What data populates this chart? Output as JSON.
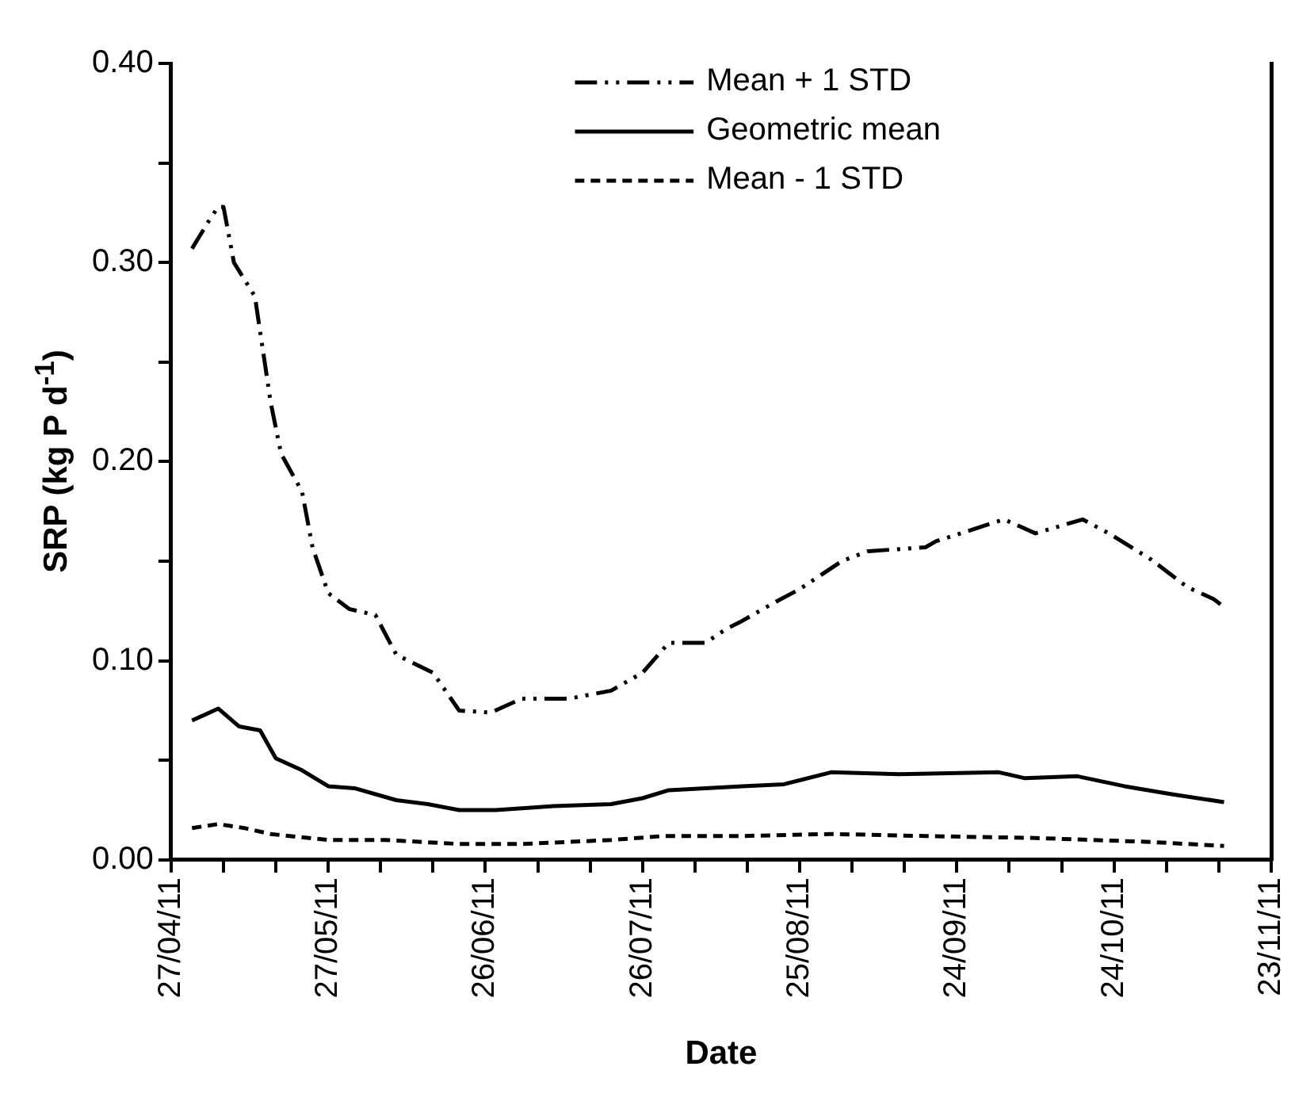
{
  "chart_data": {
    "type": "line",
    "xlabel": "Date",
    "ylabel": "SRP (kg P d$^{-1}$)",
    "legend": "top",
    "grid": false,
    "marker": "none",
    "xlim": [
      "--04-27",
      "--11-23"
    ],
    "xticks": [
      {
        "value": "--04-27",
        "label": "27/04/11"
      },
      {
        "value": "--05-07",
        "label": null
      },
      {
        "value": "--05-17",
        "label": null
      },
      {
        "value": "--05-27",
        "label": "27/05/11"
      },
      {
        "value": "--06-06",
        "label": null
      },
      {
        "value": "--06-16",
        "label": null
      },
      {
        "value": "--06-26",
        "label": "26/06/11"
      },
      {
        "value": "--07-06",
        "label": null
      },
      {
        "value": "--07-16",
        "label": null
      },
      {
        "value": "--07-26",
        "label": "26/07/11"
      },
      {
        "value": "--08-05",
        "label": null
      },
      {
        "value": "--08-15",
        "label": null
      },
      {
        "value": "--08-25",
        "label": "25/08/11"
      },
      {
        "value": "--09-04",
        "label": null
      },
      {
        "value": "--09-14",
        "label": null
      },
      {
        "value": "--09-24",
        "label": "24/09/11"
      },
      {
        "value": "--10-04",
        "label": null
      },
      {
        "value": "--10-14",
        "label": null
      },
      {
        "value": "--10-24",
        "label": "24/10/11"
      },
      {
        "value": "--11-03",
        "label": null
      },
      {
        "value": "--11-13",
        "label": null
      },
      {
        "value": "--11-23",
        "label": "23/11/11"
      }
    ],
    "ylim": [
      0,
      0.4
    ],
    "yticks": [
      {
        "value": 0,
        "label": "0.00"
      },
      {
        "value": 0.05,
        "label": null
      },
      {
        "value": 0.1,
        "label": "0.10"
      },
      {
        "value": 0.15,
        "label": null
      },
      {
        "value": 0.2,
        "label": "0.20"
      },
      {
        "value": 0.25,
        "label": null
      },
      {
        "value": 0.3,
        "label": "0.30"
      },
      {
        "value": 0.35,
        "label": null
      },
      {
        "value": 0.4,
        "label": "0.40"
      }
    ],
    "series": [
      {
        "name": "Mean + 1 STD",
        "color": "#000000",
        "line_style": "dashdot",
        "x": [
          "--05-01",
          "--05-04",
          "--05-06",
          "--05-07",
          "--05-09",
          "--05-13",
          "--05-16",
          "--05-18",
          "--05-22",
          "--05-24",
          "--05-27",
          "--05-31",
          "--06-05",
          "--06-09",
          "--06-16",
          "--06-21",
          "--06-27",
          "--07-03",
          "--07-12",
          "--07-20",
          "--07-26",
          "--07-31",
          "--08-07",
          "--08-11",
          "--08-14",
          "--08-20",
          "--08-25",
          "--09-02",
          "--09-07",
          "--09-18",
          "--09-20",
          "--10-03",
          "--10-09",
          "--10-18",
          "--10-23",
          "--10-31",
          "--11-07",
          "--11-12",
          "--11-14"
        ],
        "values": [
          0.307,
          0.32,
          0.328,
          0.328,
          0.3,
          0.283,
          0.23,
          0.204,
          0.185,
          0.157,
          0.134,
          0.126,
          0.123,
          0.103,
          0.094,
          0.075,
          0.074,
          0.081,
          0.081,
          0.085,
          0.094,
          0.109,
          0.109,
          0.116,
          0.12,
          0.129,
          0.136,
          0.15,
          0.155,
          0.157,
          0.16,
          0.171,
          0.164,
          0.171,
          0.164,
          0.151,
          0.137,
          0.131,
          0.127
        ]
      },
      {
        "name": "Geometric mean",
        "color": "#000000",
        "line_style": "solid",
        "x": [
          "--05-01",
          "--05-06",
          "--05-10",
          "--05-14",
          "--05-17",
          "--05-22",
          "--05-27",
          "--06-01",
          "--06-09",
          "--06-15",
          "--06-21",
          "--06-28",
          "--07-09",
          "--07-20",
          "--07-26",
          "--07-31",
          "--08-14",
          "--08-22",
          "--08-31",
          "--09-13",
          "--10-02",
          "--10-07",
          "--10-17",
          "--10-26",
          "--11-04",
          "--11-14"
        ],
        "values": [
          0.07,
          0.076,
          0.067,
          0.065,
          0.051,
          0.045,
          0.037,
          0.036,
          0.03,
          0.028,
          0.025,
          0.025,
          0.027,
          0.028,
          0.031,
          0.035,
          0.037,
          0.038,
          0.044,
          0.043,
          0.044,
          0.041,
          0.042,
          0.037,
          0.033,
          0.029
        ]
      },
      {
        "name": "Mean - 1 STD",
        "color": "#000000",
        "line_style": "dashed",
        "x": [
          "--05-01",
          "--05-06",
          "--05-11",
          "--05-16",
          "--05-27",
          "--06-07",
          "--06-21",
          "--07-03",
          "--07-20",
          "--07-30",
          "--08-14",
          "--08-31",
          "--09-18",
          "--10-09",
          "--10-31",
          "--11-14"
        ],
        "values": [
          0.016,
          0.018,
          0.016,
          0.013,
          0.01,
          0.01,
          0.008,
          0.008,
          0.01,
          0.012,
          0.012,
          0.013,
          0.012,
          0.011,
          0.009,
          0.007
        ]
      }
    ]
  }
}
